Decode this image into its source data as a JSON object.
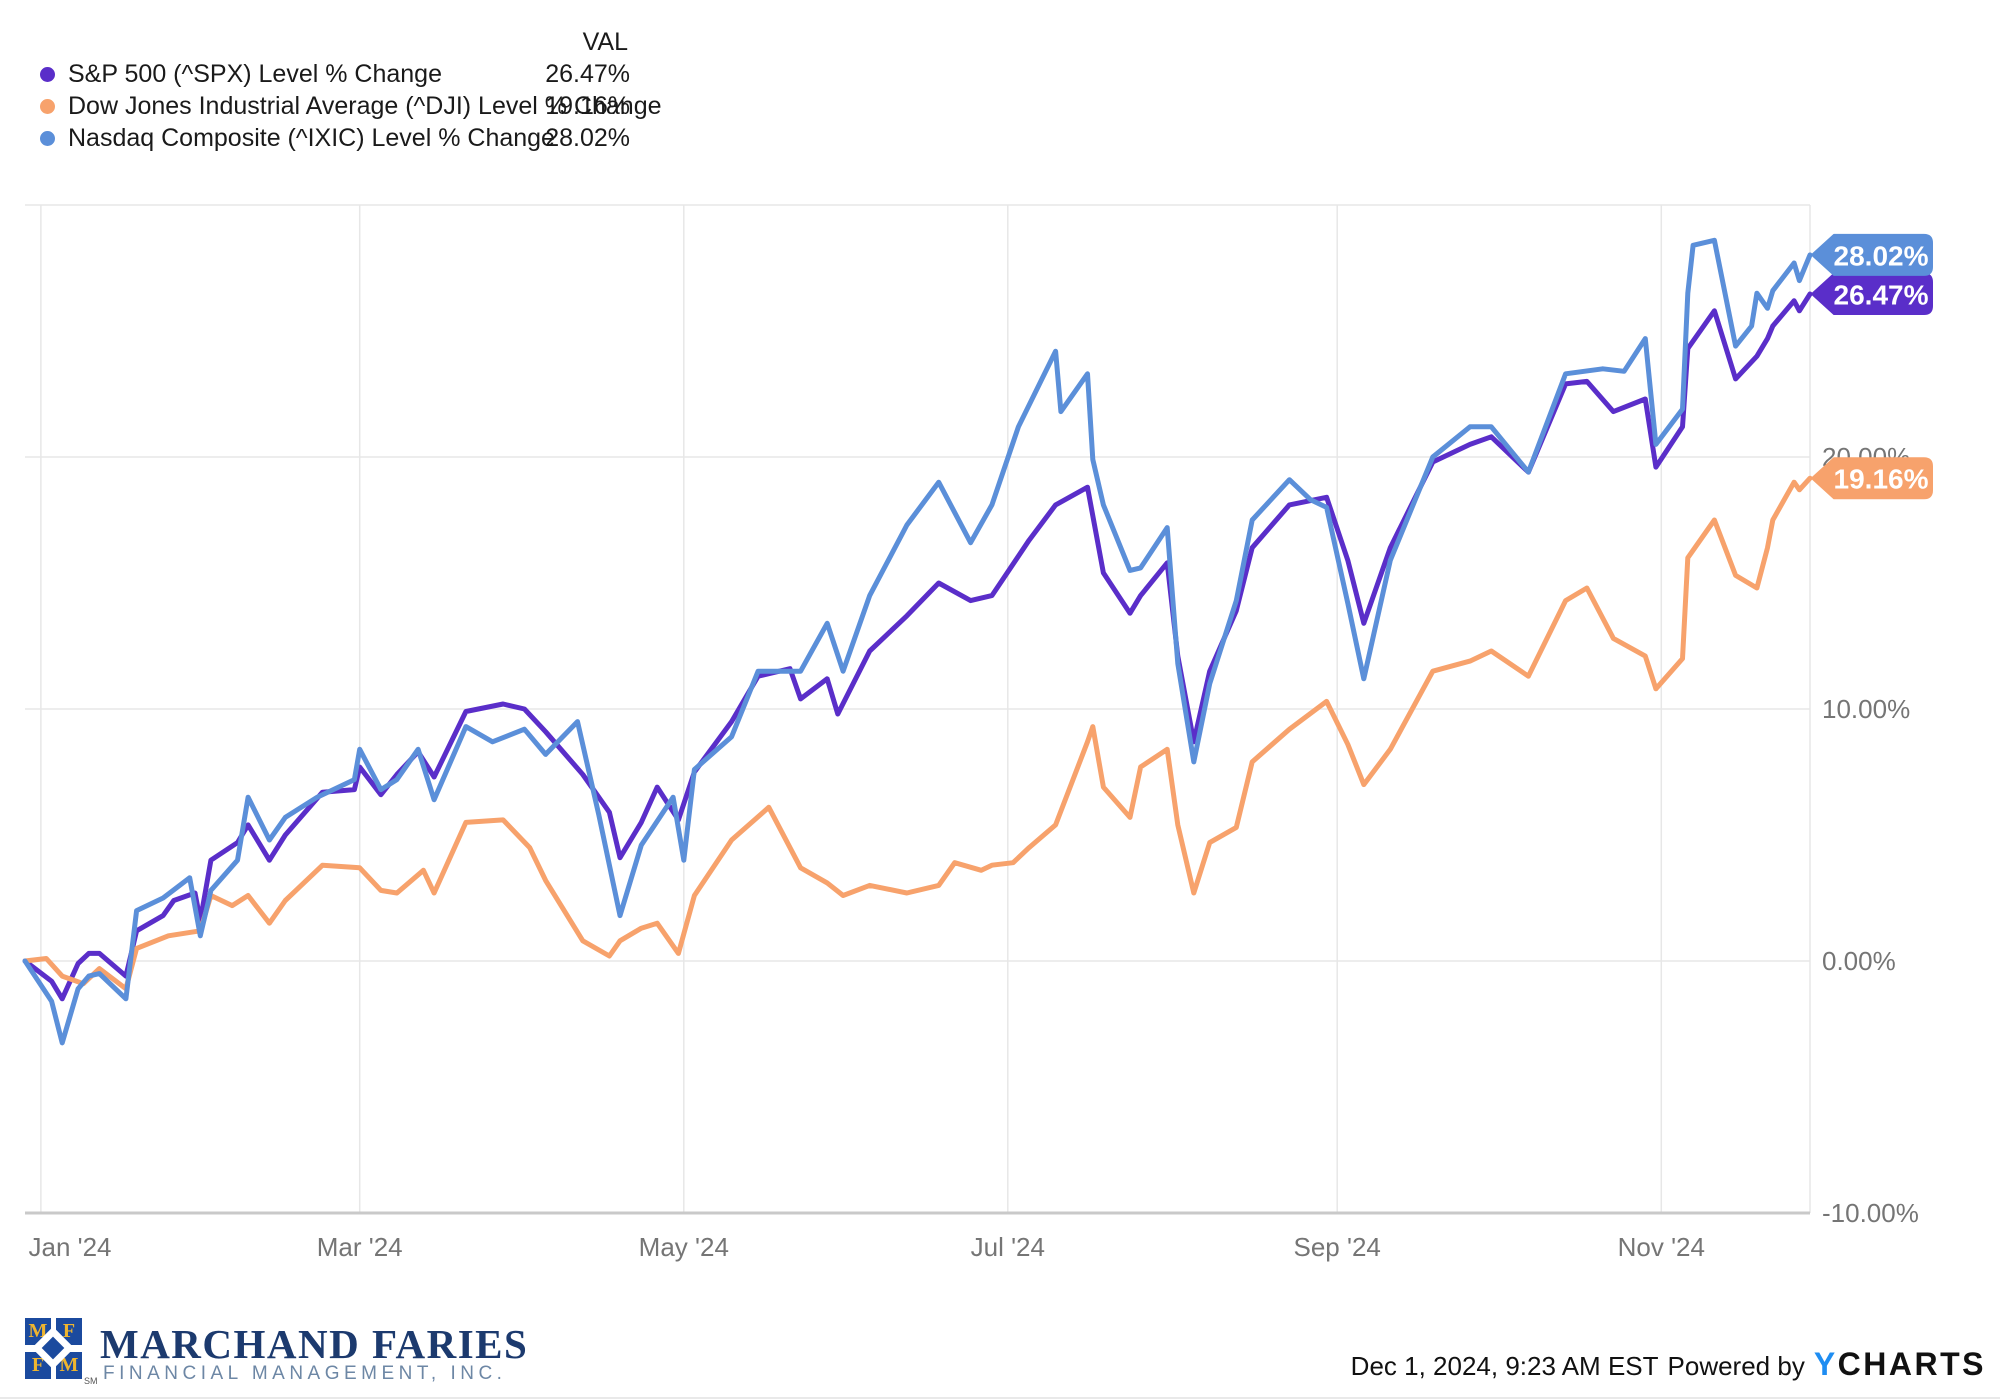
{
  "legend": {
    "val_header": "VAL",
    "items": [
      {
        "label": "S&P 500 (^SPX) Level % Change",
        "value": "26.47%",
        "color": "#5A2EC9"
      },
      {
        "label": "Dow Jones Industrial Average (^DJI) Level % Change",
        "value": "19.16%",
        "color": "#F7A26C"
      },
      {
        "label": "Nasdaq Composite (^IXIC) Level % Change",
        "value": "28.02%",
        "color": "#5B8FD9"
      }
    ]
  },
  "footer": {
    "timestamp": "Dec 1, 2024, 9:23 AM EST",
    "powered_by": "Powered by",
    "ycharts_y": "Y",
    "ycharts_rest": "CHARTS"
  },
  "branding": {
    "name": "MARCHAND FARIES",
    "subtitle": "FINANCIAL MANAGEMENT, INC.",
    "logo_letters": {
      "tl": "M",
      "tr": "F",
      "bl": "F",
      "br": "M"
    },
    "trademark": "SM"
  },
  "chart_data": {
    "type": "line",
    "title": "",
    "xlabel": "",
    "ylabel": "",
    "legend_position": "top-left",
    "grid": true,
    "ylim": [
      -10,
      30
    ],
    "xlim": [
      "2023-12-29",
      "2024-11-29"
    ],
    "y_gridlines": [
      30,
      20,
      10,
      0
    ],
    "y_ticks": [
      {
        "v": 20,
        "label": "20.00%"
      },
      {
        "v": 10,
        "label": "10.00%"
      },
      {
        "v": 0,
        "label": "0.00%"
      },
      {
        "v": -10,
        "label": "-10.00%"
      }
    ],
    "x_ticks": [
      {
        "date": "2024-01-01",
        "label": "Jan '24"
      },
      {
        "date": "2024-03-01",
        "label": "Mar '24"
      },
      {
        "date": "2024-05-01",
        "label": "May '24"
      },
      {
        "date": "2024-07-01",
        "label": "Jul '24"
      },
      {
        "date": "2024-09-01",
        "label": "Sep '24"
      },
      {
        "date": "2024-11-01",
        "label": "Nov '24"
      }
    ],
    "series": [
      {
        "name": "S&P 500 (^SPX) Level % Change",
        "color": "#5A2EC9",
        "end_label": "26.47%",
        "points": [
          [
            "2023-12-29",
            0
          ],
          [
            "2024-01-03",
            -0.8
          ],
          [
            "2024-01-05",
            -1.5
          ],
          [
            "2024-01-08",
            -0.1
          ],
          [
            "2024-01-10",
            0.3
          ],
          [
            "2024-01-12",
            0.3
          ],
          [
            "2024-01-17",
            -0.6
          ],
          [
            "2024-01-19",
            1.2
          ],
          [
            "2024-01-24",
            1.8
          ],
          [
            "2024-01-26",
            2.4
          ],
          [
            "2024-01-30",
            2.7
          ],
          [
            "2024-01-31",
            1.6
          ],
          [
            "2024-02-02",
            4.0
          ],
          [
            "2024-02-07",
            4.7
          ],
          [
            "2024-02-09",
            5.4
          ],
          [
            "2024-02-13",
            4.0
          ],
          [
            "2024-02-16",
            5.0
          ],
          [
            "2024-02-23",
            6.7
          ],
          [
            "2024-02-29",
            6.8
          ],
          [
            "2024-03-01",
            7.7
          ],
          [
            "2024-03-05",
            6.6
          ],
          [
            "2024-03-08",
            7.4
          ],
          [
            "2024-03-12",
            8.3
          ],
          [
            "2024-03-15",
            7.3
          ],
          [
            "2024-03-21",
            9.9
          ],
          [
            "2024-03-28",
            10.2
          ],
          [
            "2024-04-01",
            10.0
          ],
          [
            "2024-04-05",
            9.1
          ],
          [
            "2024-04-12",
            7.4
          ],
          [
            "2024-04-17",
            5.9
          ],
          [
            "2024-04-19",
            4.1
          ],
          [
            "2024-04-23",
            5.5
          ],
          [
            "2024-04-26",
            6.9
          ],
          [
            "2024-04-30",
            5.6
          ],
          [
            "2024-05-03",
            7.5
          ],
          [
            "2024-05-10",
            9.5
          ],
          [
            "2024-05-15",
            11.3
          ],
          [
            "2024-05-21",
            11.6
          ],
          [
            "2024-05-23",
            10.4
          ],
          [
            "2024-05-28",
            11.2
          ],
          [
            "2024-05-30",
            9.8
          ],
          [
            "2024-06-05",
            12.3
          ],
          [
            "2024-06-12",
            13.7
          ],
          [
            "2024-06-18",
            15.0
          ],
          [
            "2024-06-24",
            14.3
          ],
          [
            "2024-06-28",
            14.5
          ],
          [
            "2024-07-05",
            16.7
          ],
          [
            "2024-07-10",
            18.1
          ],
          [
            "2024-07-16",
            18.8
          ],
          [
            "2024-07-19",
            15.4
          ],
          [
            "2024-07-24",
            13.8
          ],
          [
            "2024-07-26",
            14.5
          ],
          [
            "2024-07-31",
            15.8
          ],
          [
            "2024-08-02",
            12.1
          ],
          [
            "2024-08-05",
            8.7
          ],
          [
            "2024-08-08",
            11.5
          ],
          [
            "2024-08-13",
            13.9
          ],
          [
            "2024-08-16",
            16.4
          ],
          [
            "2024-08-23",
            18.1
          ],
          [
            "2024-08-30",
            18.4
          ],
          [
            "2024-09-03",
            15.9
          ],
          [
            "2024-09-06",
            13.4
          ],
          [
            "2024-09-11",
            16.4
          ],
          [
            "2024-09-19",
            19.8
          ],
          [
            "2024-09-26",
            20.5
          ],
          [
            "2024-09-30",
            20.8
          ],
          [
            "2024-10-07",
            19.4
          ],
          [
            "2024-10-14",
            22.9
          ],
          [
            "2024-10-18",
            23.0
          ],
          [
            "2024-10-23",
            21.8
          ],
          [
            "2024-10-29",
            22.3
          ],
          [
            "2024-10-31",
            19.6
          ],
          [
            "2024-11-05",
            21.2
          ],
          [
            "2024-11-06",
            24.3
          ],
          [
            "2024-11-11",
            25.8
          ],
          [
            "2024-11-15",
            23.1
          ],
          [
            "2024-11-19",
            24.0
          ],
          [
            "2024-11-21",
            24.7
          ],
          [
            "2024-11-22",
            25.2
          ],
          [
            "2024-11-26",
            26.2
          ],
          [
            "2024-11-27",
            25.8
          ],
          [
            "2024-11-29",
            26.47
          ]
        ]
      },
      {
        "name": "Dow Jones Industrial Average (^DJI) Level % Change",
        "color": "#F7A26C",
        "end_label": "19.16%",
        "points": [
          [
            "2023-12-29",
            0
          ],
          [
            "2024-01-02",
            0.1
          ],
          [
            "2024-01-05",
            -0.6
          ],
          [
            "2024-01-09",
            -0.9
          ],
          [
            "2024-01-12",
            -0.3
          ],
          [
            "2024-01-17",
            -1.1
          ],
          [
            "2024-01-19",
            0.5
          ],
          [
            "2024-01-25",
            1.0
          ],
          [
            "2024-01-31",
            1.2
          ],
          [
            "2024-02-02",
            2.6
          ],
          [
            "2024-02-06",
            2.2
          ],
          [
            "2024-02-09",
            2.6
          ],
          [
            "2024-02-13",
            1.5
          ],
          [
            "2024-02-16",
            2.4
          ],
          [
            "2024-02-23",
            3.8
          ],
          [
            "2024-03-01",
            3.7
          ],
          [
            "2024-03-05",
            2.8
          ],
          [
            "2024-03-08",
            2.7
          ],
          [
            "2024-03-13",
            3.6
          ],
          [
            "2024-03-15",
            2.7
          ],
          [
            "2024-03-21",
            5.5
          ],
          [
            "2024-03-28",
            5.6
          ],
          [
            "2024-04-02",
            4.5
          ],
          [
            "2024-04-05",
            3.2
          ],
          [
            "2024-04-12",
            0.8
          ],
          [
            "2024-04-17",
            0.2
          ],
          [
            "2024-04-19",
            0.8
          ],
          [
            "2024-04-23",
            1.3
          ],
          [
            "2024-04-26",
            1.5
          ],
          [
            "2024-04-30",
            0.3
          ],
          [
            "2024-05-03",
            2.6
          ],
          [
            "2024-05-10",
            4.8
          ],
          [
            "2024-05-17",
            6.1
          ],
          [
            "2024-05-23",
            3.7
          ],
          [
            "2024-05-28",
            3.1
          ],
          [
            "2024-05-31",
            2.6
          ],
          [
            "2024-06-05",
            3.0
          ],
          [
            "2024-06-12",
            2.7
          ],
          [
            "2024-06-18",
            3.0
          ],
          [
            "2024-06-21",
            3.9
          ],
          [
            "2024-06-26",
            3.6
          ],
          [
            "2024-06-28",
            3.8
          ],
          [
            "2024-07-02",
            3.9
          ],
          [
            "2024-07-05",
            4.5
          ],
          [
            "2024-07-10",
            5.4
          ],
          [
            "2024-07-16",
            8.7
          ],
          [
            "2024-07-17",
            9.3
          ],
          [
            "2024-07-19",
            6.9
          ],
          [
            "2024-07-24",
            5.7
          ],
          [
            "2024-07-26",
            7.7
          ],
          [
            "2024-07-31",
            8.4
          ],
          [
            "2024-08-02",
            5.4
          ],
          [
            "2024-08-05",
            2.7
          ],
          [
            "2024-08-08",
            4.7
          ],
          [
            "2024-08-13",
            5.3
          ],
          [
            "2024-08-16",
            7.9
          ],
          [
            "2024-08-23",
            9.2
          ],
          [
            "2024-08-30",
            10.3
          ],
          [
            "2024-09-03",
            8.6
          ],
          [
            "2024-09-06",
            7.0
          ],
          [
            "2024-09-11",
            8.4
          ],
          [
            "2024-09-19",
            11.5
          ],
          [
            "2024-09-26",
            11.9
          ],
          [
            "2024-09-30",
            12.3
          ],
          [
            "2024-10-07",
            11.3
          ],
          [
            "2024-10-14",
            14.3
          ],
          [
            "2024-10-18",
            14.8
          ],
          [
            "2024-10-23",
            12.8
          ],
          [
            "2024-10-29",
            12.1
          ],
          [
            "2024-10-31",
            10.8
          ],
          [
            "2024-11-05",
            12.0
          ],
          [
            "2024-11-06",
            16.0
          ],
          [
            "2024-11-11",
            17.5
          ],
          [
            "2024-11-15",
            15.3
          ],
          [
            "2024-11-19",
            14.8
          ],
          [
            "2024-11-21",
            16.4
          ],
          [
            "2024-11-22",
            17.5
          ],
          [
            "2024-11-26",
            19.0
          ],
          [
            "2024-11-27",
            18.7
          ],
          [
            "2024-11-29",
            19.16
          ]
        ]
      },
      {
        "name": "Nasdaq Composite (^IXIC) Level % Change",
        "color": "#5B8FD9",
        "end_label": "28.02%",
        "points": [
          [
            "2023-12-29",
            0
          ],
          [
            "2024-01-03",
            -1.6
          ],
          [
            "2024-01-05",
            -3.25
          ],
          [
            "2024-01-08",
            -1.1
          ],
          [
            "2024-01-10",
            -0.6
          ],
          [
            "2024-01-12",
            -0.5
          ],
          [
            "2024-01-17",
            -1.5
          ],
          [
            "2024-01-19",
            2.0
          ],
          [
            "2024-01-24",
            2.5
          ],
          [
            "2024-01-29",
            3.3
          ],
          [
            "2024-01-31",
            1.0
          ],
          [
            "2024-02-02",
            2.8
          ],
          [
            "2024-02-07",
            4.0
          ],
          [
            "2024-02-09",
            6.5
          ],
          [
            "2024-02-13",
            4.8
          ],
          [
            "2024-02-16",
            5.7
          ],
          [
            "2024-02-22",
            6.5
          ],
          [
            "2024-02-29",
            7.2
          ],
          [
            "2024-03-01",
            8.4
          ],
          [
            "2024-03-05",
            6.8
          ],
          [
            "2024-03-08",
            7.2
          ],
          [
            "2024-03-12",
            8.4
          ],
          [
            "2024-03-15",
            6.4
          ],
          [
            "2024-03-21",
            9.3
          ],
          [
            "2024-03-26",
            8.7
          ],
          [
            "2024-04-01",
            9.2
          ],
          [
            "2024-04-05",
            8.2
          ],
          [
            "2024-04-11",
            9.5
          ],
          [
            "2024-04-15",
            5.8
          ],
          [
            "2024-04-19",
            1.8
          ],
          [
            "2024-04-23",
            4.6
          ],
          [
            "2024-04-29",
            6.5
          ],
          [
            "2024-05-01",
            4.0
          ],
          [
            "2024-05-03",
            7.6
          ],
          [
            "2024-05-10",
            8.9
          ],
          [
            "2024-05-15",
            11.5
          ],
          [
            "2024-05-23",
            11.5
          ],
          [
            "2024-05-28",
            13.4
          ],
          [
            "2024-05-31",
            11.5
          ],
          [
            "2024-06-05",
            14.5
          ],
          [
            "2024-06-12",
            17.3
          ],
          [
            "2024-06-18",
            19.0
          ],
          [
            "2024-06-24",
            16.6
          ],
          [
            "2024-06-28",
            18.1
          ],
          [
            "2024-07-03",
            21.2
          ],
          [
            "2024-07-10",
            24.2
          ],
          [
            "2024-07-11",
            21.8
          ],
          [
            "2024-07-16",
            23.3
          ],
          [
            "2024-07-17",
            19.9
          ],
          [
            "2024-07-19",
            18.1
          ],
          [
            "2024-07-24",
            15.5
          ],
          [
            "2024-07-26",
            15.6
          ],
          [
            "2024-07-31",
            17.2
          ],
          [
            "2024-08-02",
            11.8
          ],
          [
            "2024-08-05",
            7.9
          ],
          [
            "2024-08-08",
            11.0
          ],
          [
            "2024-08-13",
            14.3
          ],
          [
            "2024-08-16",
            17.5
          ],
          [
            "2024-08-23",
            19.1
          ],
          [
            "2024-08-27",
            18.3
          ],
          [
            "2024-08-30",
            18.0
          ],
          [
            "2024-09-03",
            14.2
          ],
          [
            "2024-09-06",
            11.2
          ],
          [
            "2024-09-11",
            15.9
          ],
          [
            "2024-09-19",
            20.0
          ],
          [
            "2024-09-26",
            21.2
          ],
          [
            "2024-09-30",
            21.2
          ],
          [
            "2024-10-07",
            19.4
          ],
          [
            "2024-10-14",
            23.3
          ],
          [
            "2024-10-21",
            23.5
          ],
          [
            "2024-10-25",
            23.4
          ],
          [
            "2024-10-29",
            24.7
          ],
          [
            "2024-10-31",
            20.5
          ],
          [
            "2024-11-05",
            21.9
          ],
          [
            "2024-11-06",
            26.5
          ],
          [
            "2024-11-07",
            28.4
          ],
          [
            "2024-11-11",
            28.6
          ],
          [
            "2024-11-15",
            24.4
          ],
          [
            "2024-11-18",
            25.2
          ],
          [
            "2024-11-19",
            26.5
          ],
          [
            "2024-11-20",
            26.2
          ],
          [
            "2024-11-21",
            25.9
          ],
          [
            "2024-11-22",
            26.6
          ],
          [
            "2024-11-26",
            27.7
          ],
          [
            "2024-11-27",
            27.0
          ],
          [
            "2024-11-29",
            28.02
          ]
        ]
      }
    ]
  }
}
